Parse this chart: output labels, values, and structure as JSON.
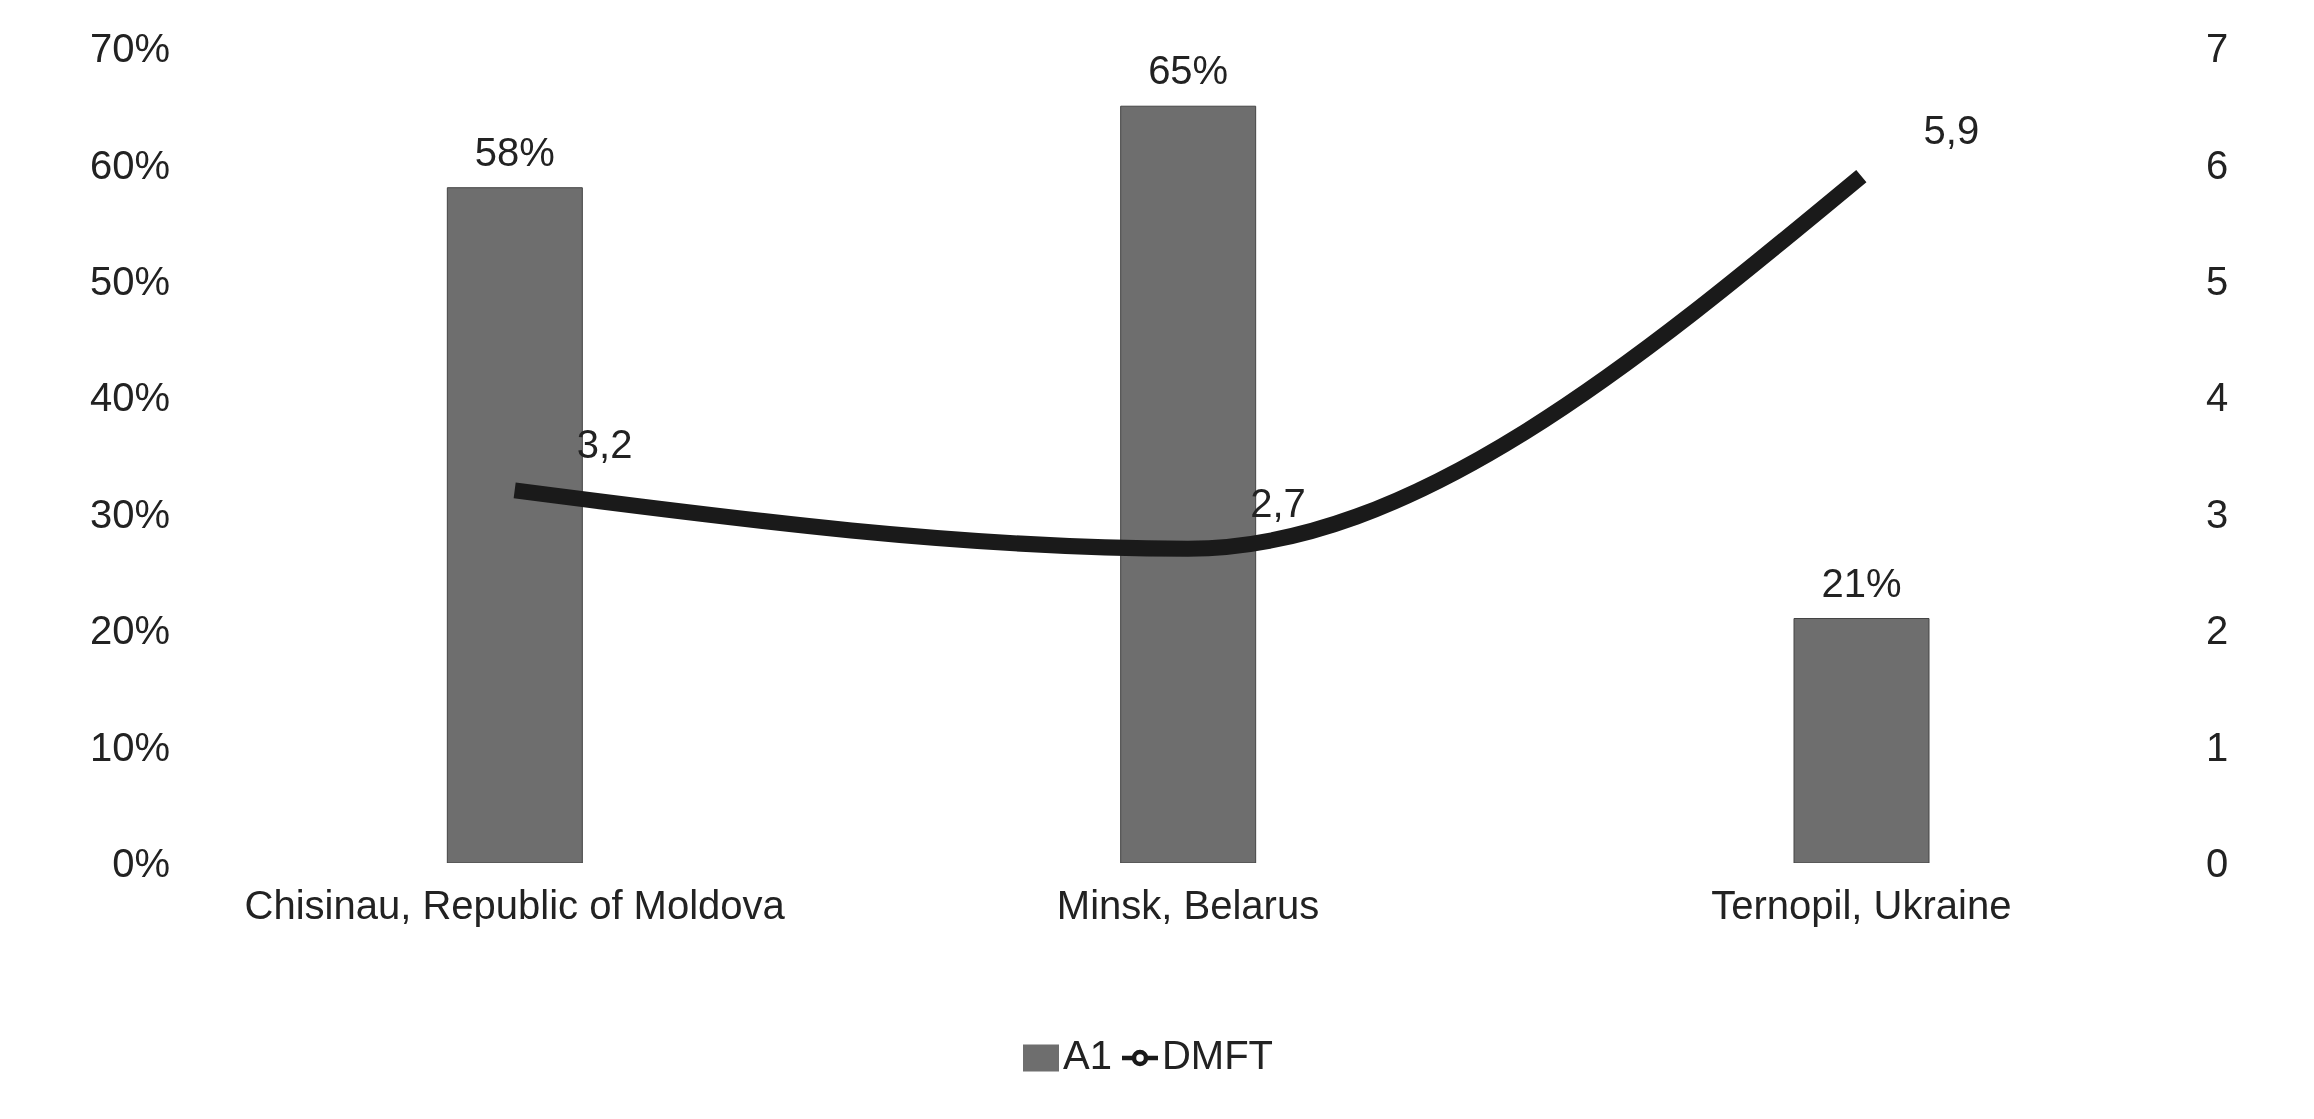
{
  "chart_data": {
    "type": "bar",
    "categories": [
      "Chisinau, Republic of Moldova",
      "Minsk, Belarus",
      "Ternopil, Ukraine"
    ],
    "series": [
      {
        "name": "A1",
        "color": "#6e6e6e",
        "values": [
          58,
          65,
          21
        ],
        "value_labels": [
          "58%",
          "65%",
          "21%"
        ]
      },
      {
        "name": "DMFT",
        "type": "line",
        "axis": "y2",
        "color": "#1a1a1a",
        "values": [
          3.2,
          2.7,
          5.9
        ],
        "value_labels": [
          "3,2",
          "2,7",
          "5,9"
        ]
      }
    ],
    "ylim": [
      0,
      70
    ],
    "yticks": [
      {
        "value": 0,
        "label": "0%"
      },
      {
        "value": 10,
        "label": "10%"
      },
      {
        "value": 20,
        "label": "20%"
      },
      {
        "value": 30,
        "label": "30%"
      },
      {
        "value": 40,
        "label": "40%"
      },
      {
        "value": 50,
        "label": "50%"
      },
      {
        "value": 60,
        "label": "60%"
      },
      {
        "value": 70,
        "label": "70%"
      }
    ],
    "y2lim": [
      0,
      7
    ],
    "y2ticks": [
      0,
      1,
      2,
      3,
      4,
      5,
      6,
      7
    ],
    "legend": "bottom",
    "grid": false,
    "marker": "none"
  }
}
